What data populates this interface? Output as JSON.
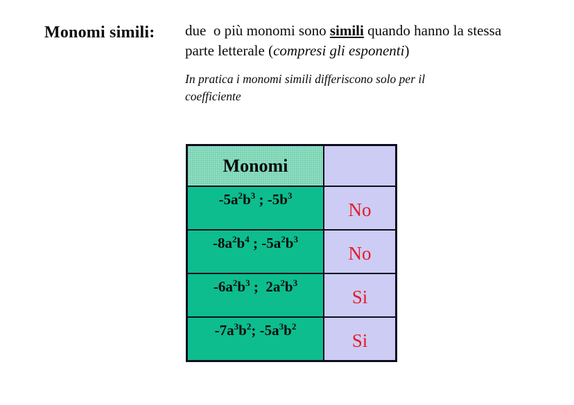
{
  "slide": {
    "background": "#ffffff",
    "title": "Monomi simili:",
    "intro": {
      "part1": "due  o più monomi sono ",
      "keyword": "simili",
      "part2": " quando hanno la stessa parte letterale (",
      "italic_phrase": "compresi gli esponenti",
      "part3": ")"
    },
    "note": "In pratica i monomi simili differiscono solo per il coefficiente"
  },
  "table": {
    "header": {
      "monomi_label": "Monomi",
      "answer_label": ""
    },
    "rows": [
      {
        "monomials": "-5a^2b^3 ; -5b^3",
        "answer": "No"
      },
      {
        "monomials": "-8a^2b^4 ; -5a^2b^3",
        "answer": "No"
      },
      {
        "monomials": "-6a^2b^3 ;  2a^2b^3",
        "answer": "Si"
      },
      {
        "monomials": "-7a^3b^2; -5a^3b^2",
        "answer": "Si"
      }
    ],
    "colors": {
      "header_green": "#9de9ce",
      "cell_green": "#0dbd8d",
      "answer_lavender": "#cdccf4",
      "answer_text_red": "#e31b27",
      "border": "#0d0d1e"
    }
  }
}
